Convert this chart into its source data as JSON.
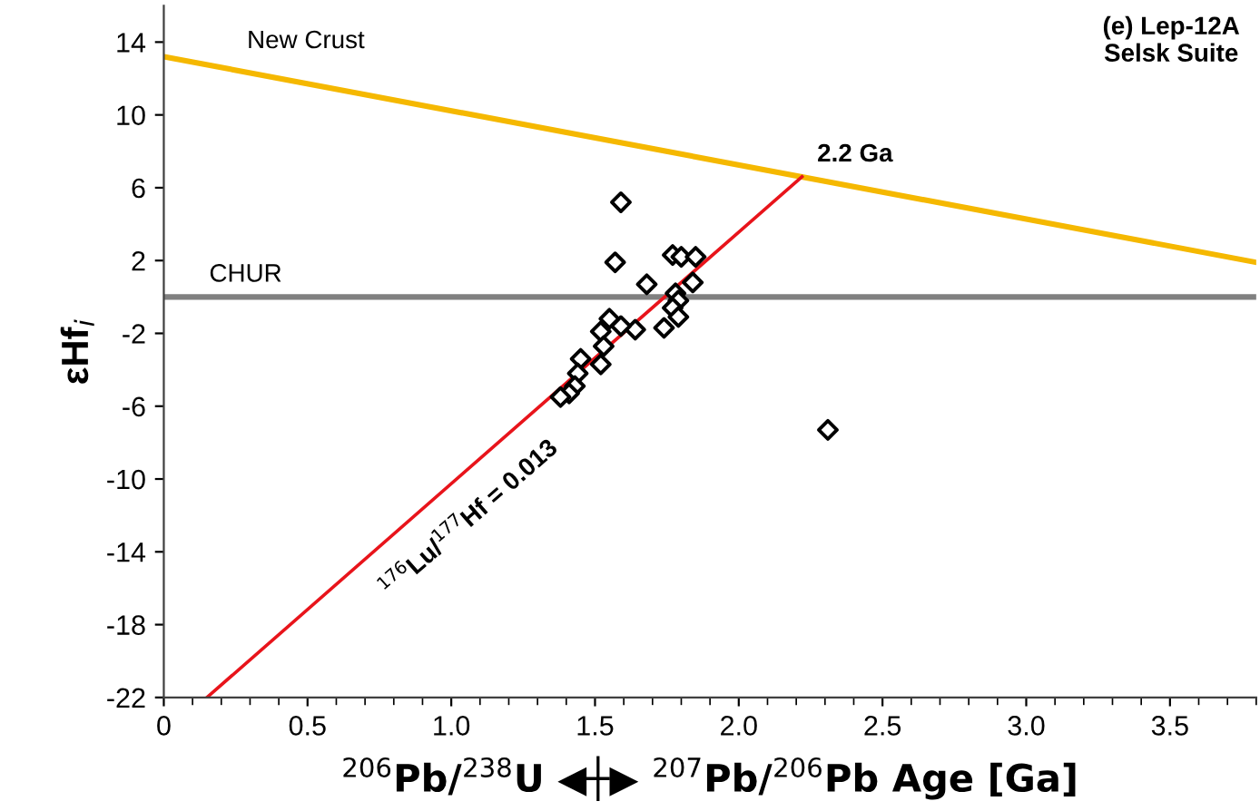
{
  "chart_data": {
    "type": "scatter",
    "title": "(e) Lep-12A\nSelsk Suite",
    "xlabel": "$^{206}$Pb/$^{238}$U ◀┼▶ $^{207}$Pb/$^{206}$Pb Age [Ga]",
    "ylabel": "εHf$_{i}$",
    "xlim": [
      0,
      3.8
    ],
    "ylim": [
      -22,
      16
    ],
    "xticks": [
      0,
      {
        "value": 0.5,
        "label": "0.5"
      },
      {
        "value": 1,
        "label": "1.0"
      },
      {
        "value": 1.5,
        "label": "1.5"
      },
      {
        "value": 2,
        "label": "2.0"
      },
      {
        "value": 2.5,
        "label": "2.5"
      },
      {
        "value": 3,
        "label": "3.0"
      },
      {
        "value": 3.5,
        "label": "3.5"
      }
    ],
    "yticks": [
      -22,
      -18,
      -14,
      -10,
      -6,
      -2,
      2,
      6,
      10,
      14
    ],
    "grid": false,
    "marker": "diamond",
    "series": [
      {
        "type": "line",
        "color": "#f5b800",
        "x": [
          0,
          3.8
        ],
        "values": [
          13.2,
          1.9
        ],
        "marker": "none"
      },
      {
        "type": "line",
        "color": "#e8141b",
        "x": [
          0.15,
          2.22
        ],
        "values": [
          -22,
          6.6
        ],
        "marker": "none"
      },
      {
        "color": "#000000",
        "x": [
          1.59,
          1.57,
          1.77,
          1.8,
          1.85,
          1.68,
          1.84,
          1.78,
          1.79,
          1.77,
          1.79,
          1.74,
          1.64,
          1.59,
          1.55,
          1.52,
          1.53,
          1.52,
          1.45,
          1.44,
          1.43,
          1.41,
          1.38,
          2.31
        ],
        "values": [
          5.2,
          1.9,
          2.3,
          2.2,
          2.2,
          0.7,
          0.8,
          0.2,
          -0.2,
          -0.6,
          -1.1,
          -1.7,
          -1.8,
          -1.6,
          -1.2,
          -1.9,
          -2.7,
          -3.7,
          -3.4,
          -4.2,
          -4.9,
          -5.3,
          -5.5,
          -7.3
        ]
      }
    ],
    "ref_lines": [
      {
        "axis": "y",
        "value": 0,
        "label": "CHUR",
        "color": "#808080"
      }
    ],
    "annotations": [
      "New Crust",
      {
        "text": "2.2 Ga",
        "x": 2.22,
        "y": 6.6
      },
      "$^{176}$Lu/$^{177}$Hf = 0.013"
    ]
  }
}
